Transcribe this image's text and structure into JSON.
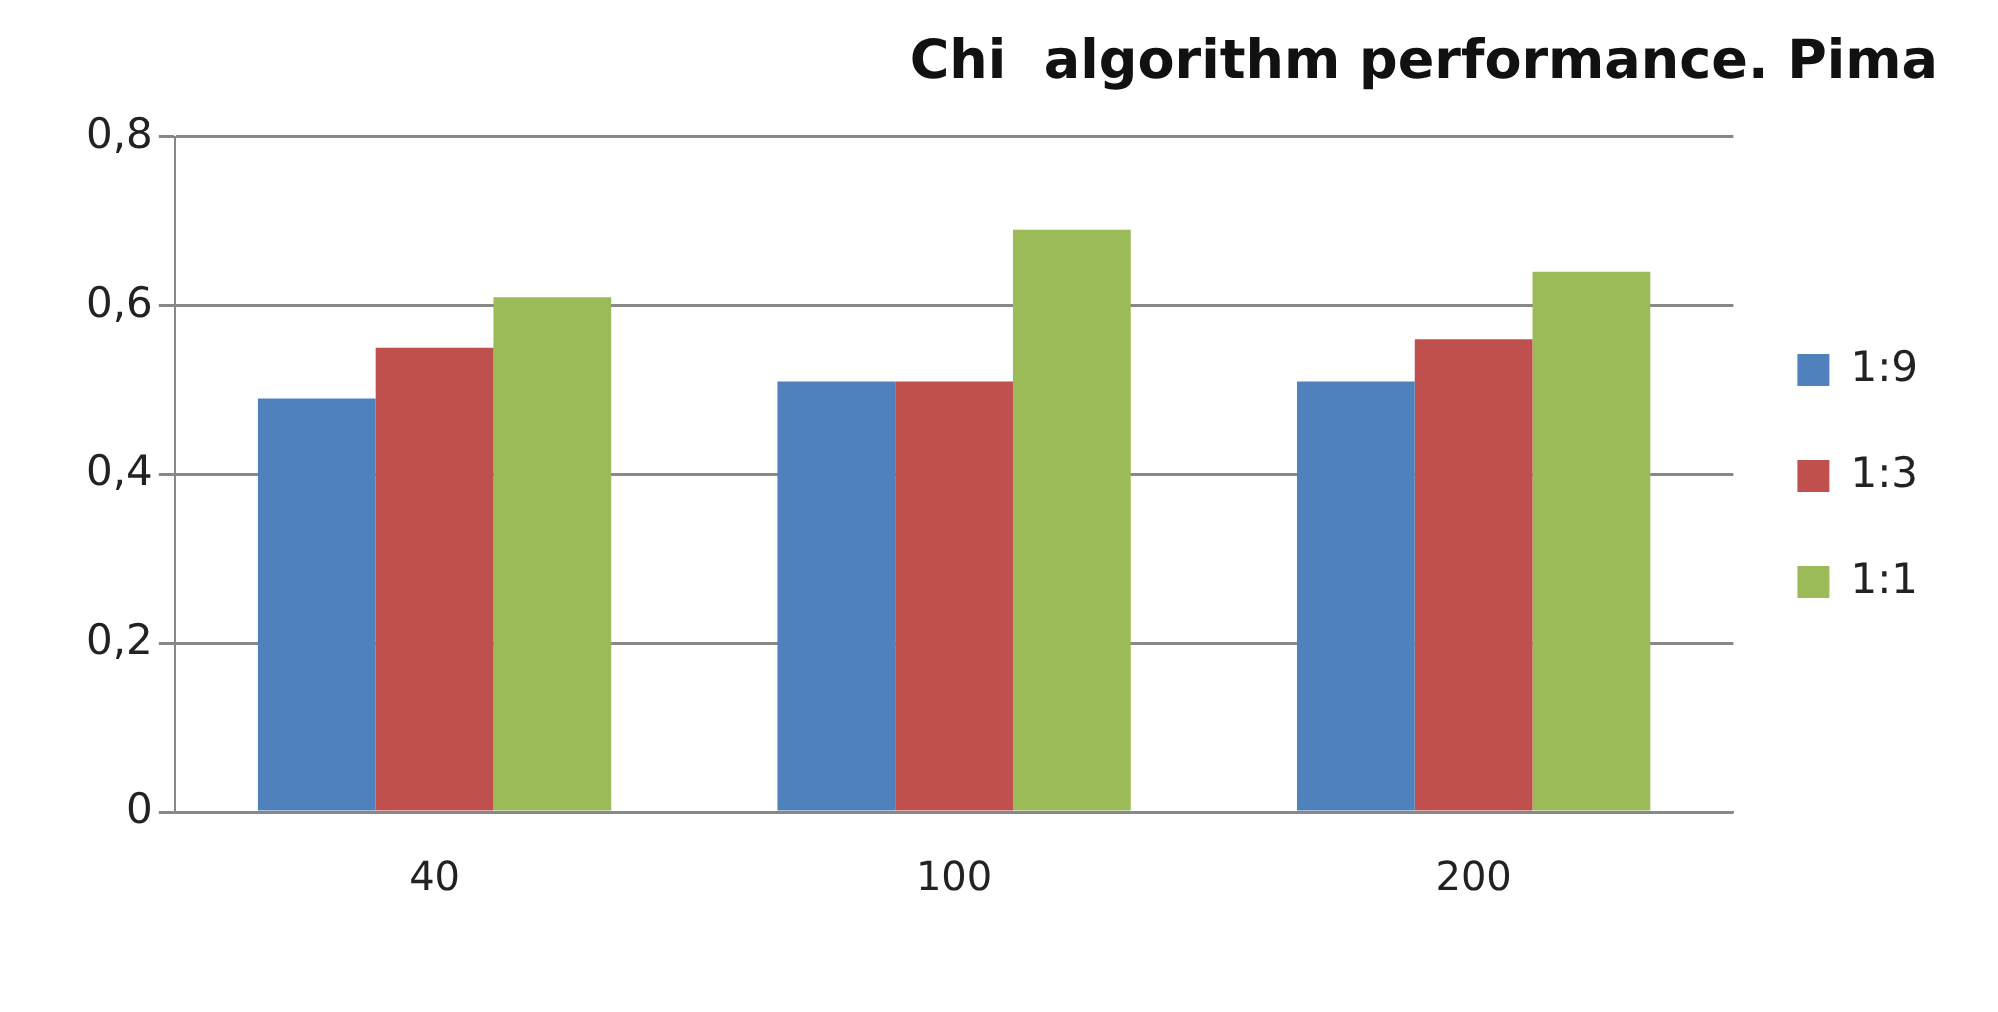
{
  "chart_data": {
    "type": "bar",
    "title": "Chi  algorithm performance. Pima",
    "categories": [
      "40",
      "100",
      "200"
    ],
    "series": [
      {
        "name": "1:9",
        "color": "#4f81bd",
        "values": [
          0.49,
          0.51,
          0.51
        ]
      },
      {
        "name": "1:3",
        "color": "#c0504d",
        "values": [
          0.55,
          0.51,
          0.56
        ]
      },
      {
        "name": "1:1",
        "color": "#9bbb59",
        "values": [
          0.61,
          0.69,
          0.64
        ]
      }
    ],
    "ylim": [
      0,
      0.8
    ],
    "yticks": [
      0,
      {
        "value": 0.2,
        "label": "0,2"
      },
      {
        "value": 0.4,
        "label": "0,4"
      },
      {
        "value": 0.6,
        "label": "0,6"
      },
      {
        "value": 0.8,
        "label": "0,8"
      }
    ],
    "grid": "y",
    "legend": "right"
  }
}
